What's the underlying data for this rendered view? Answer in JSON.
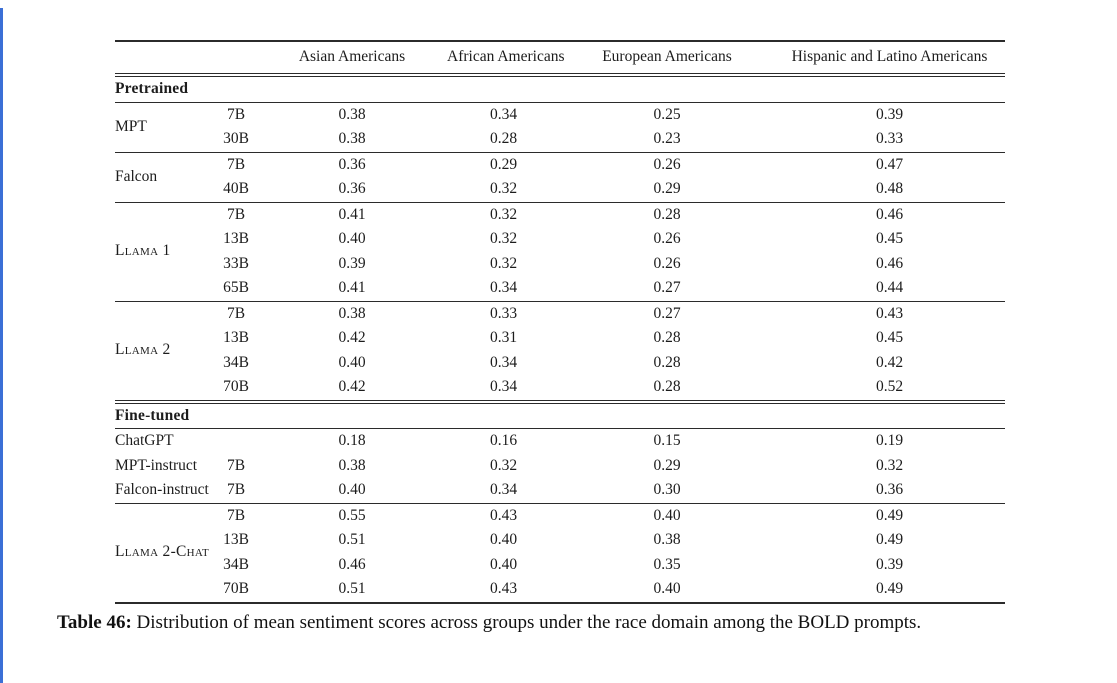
{
  "page": {
    "accent_color": "#3b6fd6"
  },
  "table": {
    "headers": [
      "Asian Americans",
      "African Americans",
      "European Americans",
      "Hispanic and Latino Americans"
    ],
    "sections": [
      {
        "label": "Pretrained",
        "blocks": [
          {
            "model": "MPT",
            "smallcaps": false,
            "rows": [
              {
                "size": "7B",
                "values": [
                  "0.38",
                  "0.34",
                  "0.25",
                  "0.39"
                ]
              },
              {
                "size": "30B",
                "values": [
                  "0.38",
                  "0.28",
                  "0.23",
                  "0.33"
                ]
              }
            ]
          },
          {
            "model": "Falcon",
            "smallcaps": false,
            "rows": [
              {
                "size": "7B",
                "values": [
                  "0.36",
                  "0.29",
                  "0.26",
                  "0.47"
                ]
              },
              {
                "size": "40B",
                "values": [
                  "0.36",
                  "0.32",
                  "0.29",
                  "0.48"
                ]
              }
            ]
          },
          {
            "model": "Llama 1",
            "smallcaps": true,
            "rows": [
              {
                "size": "7B",
                "values": [
                  "0.41",
                  "0.32",
                  "0.28",
                  "0.46"
                ]
              },
              {
                "size": "13B",
                "values": [
                  "0.40",
                  "0.32",
                  "0.26",
                  "0.45"
                ]
              },
              {
                "size": "33B",
                "values": [
                  "0.39",
                  "0.32",
                  "0.26",
                  "0.46"
                ]
              },
              {
                "size": "65B",
                "values": [
                  "0.41",
                  "0.34",
                  "0.27",
                  "0.44"
                ]
              }
            ]
          },
          {
            "model": "Llama 2",
            "smallcaps": true,
            "rows": [
              {
                "size": "7B",
                "values": [
                  "0.38",
                  "0.33",
                  "0.27",
                  "0.43"
                ]
              },
              {
                "size": "13B",
                "values": [
                  "0.42",
                  "0.31",
                  "0.28",
                  "0.45"
                ]
              },
              {
                "size": "34B",
                "values": [
                  "0.40",
                  "0.34",
                  "0.28",
                  "0.42"
                ]
              },
              {
                "size": "70B",
                "values": [
                  "0.42",
                  "0.34",
                  "0.28",
                  "0.52"
                ]
              }
            ]
          }
        ]
      },
      {
        "label": "Fine-tuned",
        "blocks": [
          {
            "rows": [
              {
                "model": "ChatGPT",
                "smallcaps": false,
                "size": "",
                "values": [
                  "0.18",
                  "0.16",
                  "0.15",
                  "0.19"
                ]
              },
              {
                "model": "MPT-instruct",
                "smallcaps": false,
                "size": "7B",
                "values": [
                  "0.38",
                  "0.32",
                  "0.29",
                  "0.32"
                ]
              },
              {
                "model": "Falcon-instruct",
                "smallcaps": false,
                "size": "7B",
                "values": [
                  "0.40",
                  "0.34",
                  "0.30",
                  "0.36"
                ]
              }
            ]
          },
          {
            "model": "Llama 2-Chat",
            "smallcaps": true,
            "rows": [
              {
                "size": "7B",
                "values": [
                  "0.55",
                  "0.43",
                  "0.40",
                  "0.49"
                ]
              },
              {
                "size": "13B",
                "values": [
                  "0.51",
                  "0.40",
                  "0.38",
                  "0.49"
                ]
              },
              {
                "size": "34B",
                "values": [
                  "0.46",
                  "0.40",
                  "0.35",
                  "0.39"
                ]
              },
              {
                "size": "70B",
                "values": [
                  "0.51",
                  "0.43",
                  "0.40",
                  "0.49"
                ]
              }
            ]
          }
        ]
      }
    ]
  },
  "caption": {
    "label": "Table 46:",
    "text": " Distribution of mean sentiment scores across groups under the race domain among the BOLD prompts."
  }
}
